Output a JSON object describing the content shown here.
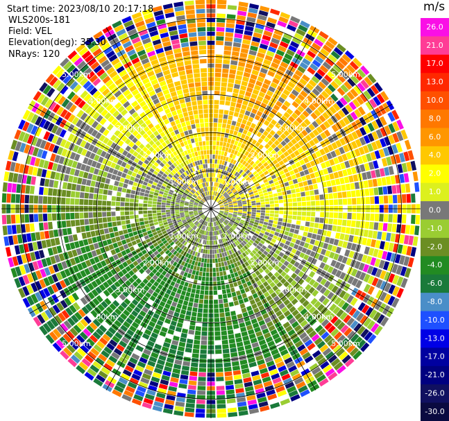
{
  "header": {
    "start_time": "Start time: 2023/08/10 20:17:18",
    "site": "WLS200s-181",
    "field": "Field: VEL",
    "elevation": "Elevation(deg): 35.30",
    "nrays": "NRays: 120"
  },
  "chart_data": {
    "type": "heatmap",
    "projection": "polar PPI",
    "field": "VEL",
    "units_label": "m/s",
    "n_rays": 120,
    "max_range_km": 5.5,
    "range_rings_km": [
      1.0,
      2.0,
      3.0,
      4.0,
      5.0
    ],
    "ring_labels": [
      "1.00km",
      "2.00km",
      "3.00km",
      "4.00km",
      "5.00km"
    ],
    "colorbar": {
      "ticks": [
        "26.0",
        "21.0",
        "17.0",
        "13.0",
        "10.0",
        "8.0",
        "6.0",
        "4.0",
        "2.0",
        "1.0",
        "0.0",
        "-1.0",
        "-2.0",
        "-4.0",
        "-6.0",
        "-8.0",
        "-10.0",
        "-13.0",
        "-17.0",
        "-21.0",
        "-26.0",
        "-30.0"
      ],
      "colors": [
        "#fa0fe6",
        "#ff3c96",
        "#ff0000",
        "#ff2800",
        "#ff5000",
        "#ff7800",
        "#ff9600",
        "#ffc800",
        "#ffff00",
        "#dcf01e",
        "#787878",
        "#9acd32",
        "#6b8e23",
        "#228b22",
        "#1a7a3a",
        "#4a8ec8",
        "#1e50ff",
        "#0000e6",
        "#0000a0",
        "#000080",
        "#101060",
        "#0a0a40"
      ]
    },
    "velocity_pattern": "near zero in the inner rings, positive (yellow-orange) to the north and north-east, negative (green) to the south and south-west, noisy speckle beyond about 4 km"
  }
}
